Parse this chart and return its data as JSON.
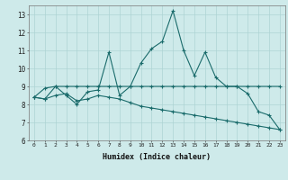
{
  "xlabel": "Humidex (Indice chaleur)",
  "background_color": "#ceeaea",
  "grid_color": "#aed4d4",
  "line_color": "#1a6b6b",
  "xlim": [
    -0.5,
    23.5
  ],
  "ylim": [
    6,
    13.5
  ],
  "xticks": [
    0,
    1,
    2,
    3,
    4,
    5,
    6,
    7,
    8,
    9,
    10,
    11,
    12,
    13,
    14,
    15,
    16,
    17,
    18,
    19,
    20,
    21,
    22,
    23
  ],
  "yticks": [
    6,
    7,
    8,
    9,
    10,
    11,
    12,
    13
  ],
  "series": [
    [
      8.4,
      8.3,
      9.0,
      8.5,
      8.0,
      8.7,
      8.8,
      10.9,
      8.5,
      9.0,
      10.3,
      11.1,
      11.5,
      13.2,
      11.0,
      9.6,
      10.9,
      9.5,
      9.0,
      9.0,
      8.6,
      7.6,
      7.4,
      6.6
    ],
    [
      8.4,
      8.9,
      9.0,
      9.0,
      9.0,
      9.0,
      9.0,
      9.0,
      9.0,
      9.0,
      9.0,
      9.0,
      9.0,
      9.0,
      9.0,
      9.0,
      9.0,
      9.0,
      9.0,
      9.0,
      9.0,
      9.0,
      9.0,
      9.0
    ],
    [
      8.4,
      8.3,
      8.5,
      8.6,
      8.2,
      8.3,
      8.5,
      8.4,
      8.3,
      8.1,
      7.9,
      7.8,
      7.7,
      7.6,
      7.5,
      7.4,
      7.3,
      7.2,
      7.1,
      7.0,
      6.9,
      6.8,
      6.7,
      6.6
    ]
  ]
}
